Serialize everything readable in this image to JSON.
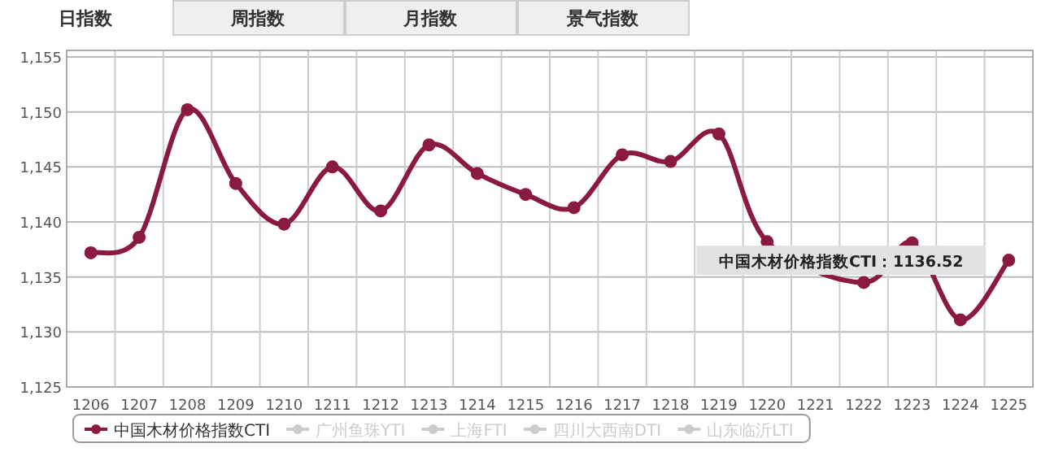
{
  "chart_data": {
    "type": "line",
    "categories": [
      "1206",
      "1207",
      "1208",
      "1209",
      "1210",
      "1211",
      "1212",
      "1213",
      "1214",
      "1215",
      "1216",
      "1217",
      "1218",
      "1219",
      "1220",
      "1221",
      "1222",
      "1223",
      "1224",
      "1225"
    ],
    "series": [
      {
        "name": "中国木材价格指数CTI",
        "color": "#8b1a3f",
        "values": [
          1137.2,
          1138.6,
          1150.2,
          1143.5,
          1139.8,
          1145.0,
          1141.0,
          1147.0,
          1144.4,
          1142.5,
          1141.3,
          1146.1,
          1145.5,
          1148.0,
          1138.2,
          null,
          1134.5,
          1138.1,
          1131.1,
          1136.52
        ]
      },
      {
        "name": "广州鱼珠YTI",
        "color": "#cccccc",
        "values": [
          null,
          null,
          null,
          null,
          null,
          null,
          null,
          null,
          null,
          null,
          null,
          null,
          null,
          null,
          null,
          null,
          null,
          null,
          null,
          null
        ]
      },
      {
        "name": "上海FTI",
        "color": "#cccccc",
        "values": [
          null,
          null,
          null,
          null,
          null,
          null,
          null,
          null,
          null,
          null,
          null,
          null,
          null,
          null,
          null,
          null,
          null,
          null,
          null,
          null
        ]
      },
      {
        "name": "四川大西南DTI",
        "color": "#cccccc",
        "values": [
          null,
          null,
          null,
          null,
          null,
          null,
          null,
          null,
          null,
          null,
          null,
          null,
          null,
          null,
          null,
          null,
          null,
          null,
          null,
          null
        ]
      },
      {
        "name": "山东临沂LTI",
        "color": "#cccccc",
        "values": [
          null,
          null,
          null,
          null,
          null,
          null,
          null,
          null,
          null,
          null,
          null,
          null,
          null,
          null,
          null,
          null,
          null,
          null,
          null,
          null
        ]
      }
    ],
    "ylim": [
      1125,
      1155
    ],
    "yticks": [
      {
        "value": 1125,
        "label": "1,125"
      },
      {
        "value": 1130,
        "label": "1,130"
      },
      {
        "value": 1135,
        "label": "1,135"
      },
      {
        "value": 1140,
        "label": "1,140"
      },
      {
        "value": 1145,
        "label": "1,145"
      },
      {
        "value": 1150,
        "label": "1,150"
      },
      {
        "value": 1155,
        "label": "1,155"
      }
    ],
    "grid": true,
    "marker": "circle",
    "legend": "bottom",
    "annotations": [
      "日指数",
      "周指数",
      "月指数",
      "景气指数",
      {
        "text": "中国木材价格指数CTI：1136.52",
        "x": "1225",
        "y": 1136.52
      }
    ]
  }
}
